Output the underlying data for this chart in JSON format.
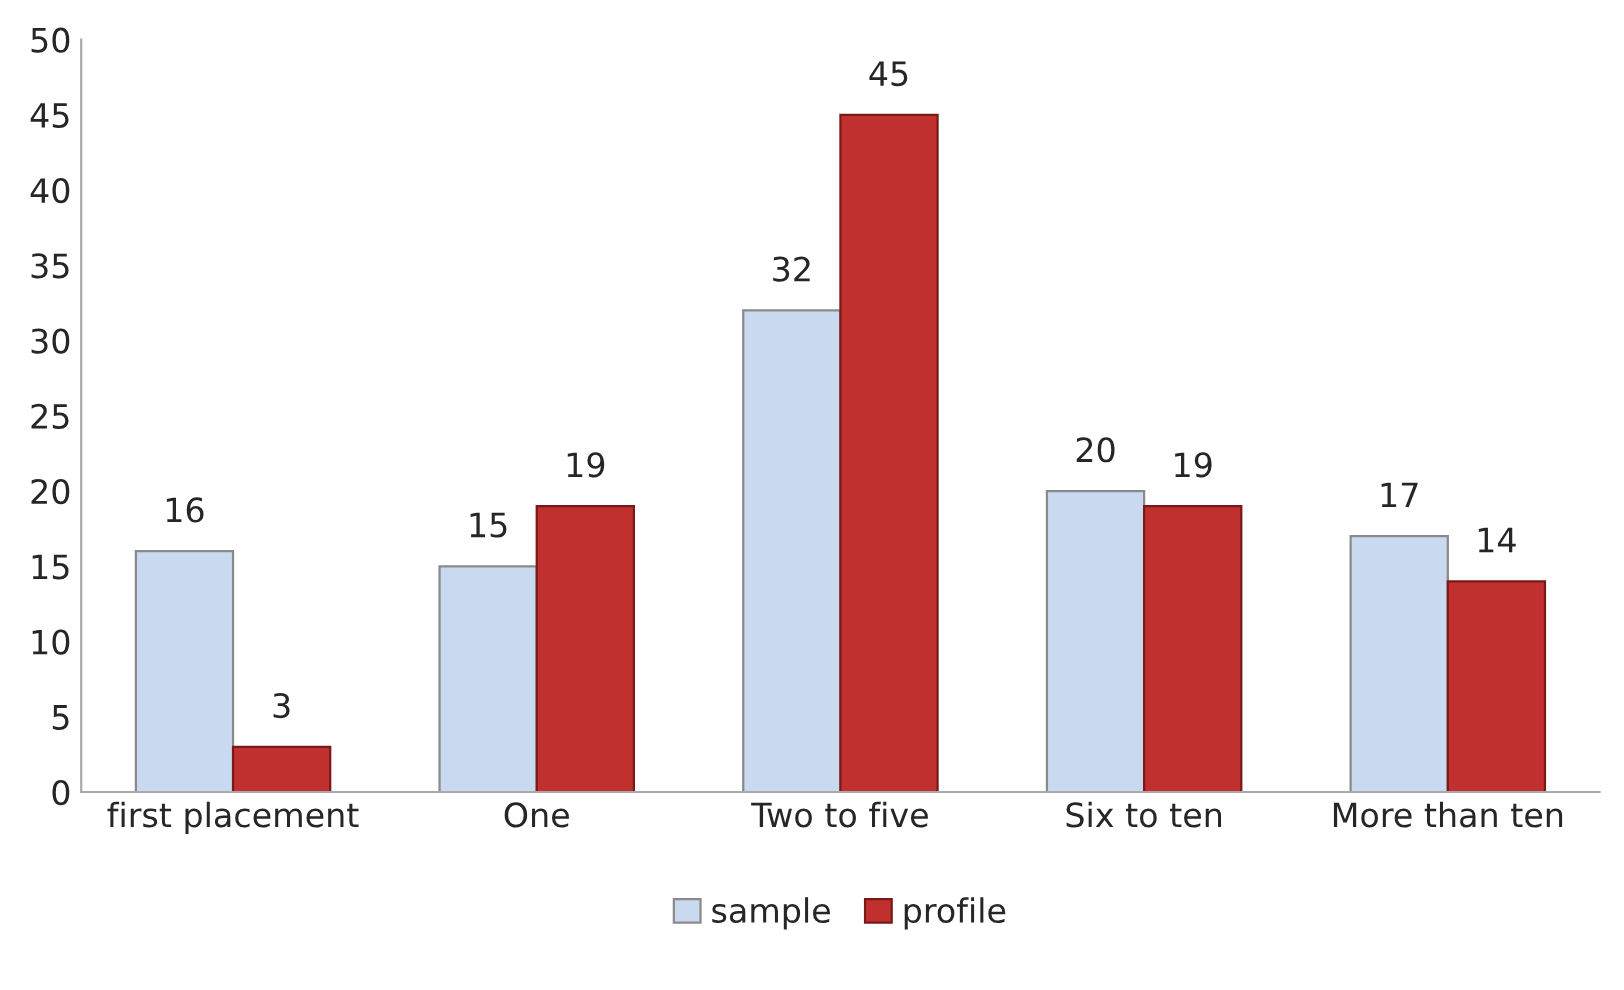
{
  "chart_data": {
    "type": "bar",
    "categories": [
      "first placement",
      "One",
      "Two to five",
      "Six to ten",
      "More than ten"
    ],
    "series": [
      {
        "name": "sample",
        "color": "#c9daf0",
        "values": [
          16,
          15,
          32,
          20,
          17
        ]
      },
      {
        "name": "profile",
        "color": "#c0302e",
        "values": [
          3,
          19,
          45,
          19,
          14
        ]
      }
    ],
    "ylim": [
      0,
      50
    ],
    "yticks": [
      0,
      5,
      10,
      15,
      20,
      25,
      30,
      35,
      40,
      45,
      50
    ],
    "grid": false,
    "legend": "bottom",
    "data_labels": true
  }
}
